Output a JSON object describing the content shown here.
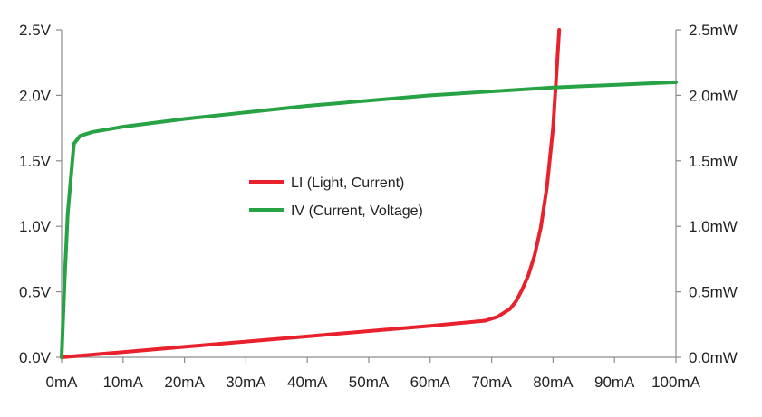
{
  "chart_data": {
    "type": "line",
    "xlabel": "",
    "ylabel": "",
    "y2label": "",
    "grid": false,
    "legend_position": "center",
    "x_ticks": [
      "0mA",
      "10mA",
      "20mA",
      "30mA",
      "40mA",
      "50mA",
      "60mA",
      "70mA",
      "80mA",
      "90mA",
      "100mA"
    ],
    "x_tick_values": [
      0,
      10,
      20,
      30,
      40,
      50,
      60,
      70,
      80,
      90,
      100
    ],
    "xlim": [
      0,
      100
    ],
    "y_left_ticks": [
      "0.0V",
      "0.5V",
      "1.0V",
      "1.5V",
      "2.0V",
      "2.5V"
    ],
    "y_left_tick_values": [
      0,
      0.5,
      1.0,
      1.5,
      2.0,
      2.5
    ],
    "ylim_left": [
      0,
      2.5
    ],
    "y_right_ticks": [
      "0.0mW",
      "0.5mW",
      "1.0mW",
      "1.5mW",
      "2.0mW",
      "2.5mW"
    ],
    "y_right_tick_values": [
      0,
      0.5,
      1.0,
      1.5,
      2.0,
      2.5
    ],
    "ylim_right": [
      0,
      2.5
    ],
    "series": [
      {
        "name": "LI (Light, Current)",
        "axis": "right",
        "color": "#e8212d",
        "x": [
          0,
          10,
          20,
          30,
          40,
          50,
          60,
          69,
          71,
          73,
          74,
          75,
          76,
          77,
          78,
          79,
          80,
          81
        ],
        "y": [
          0,
          0.04,
          0.08,
          0.12,
          0.16,
          0.2,
          0.24,
          0.28,
          0.31,
          0.37,
          0.43,
          0.52,
          0.63,
          0.78,
          0.99,
          1.3,
          1.75,
          2.5
        ]
      },
      {
        "name": "IV (Current, Voltage)",
        "axis": "left",
        "color": "#27a244",
        "x": [
          0,
          0.5,
          1,
          2,
          3,
          5,
          10,
          20,
          30,
          40,
          50,
          60,
          70,
          80,
          90,
          100
        ],
        "y": [
          0,
          0.6,
          1.1,
          1.63,
          1.69,
          1.72,
          1.76,
          1.82,
          1.87,
          1.92,
          1.96,
          2.0,
          2.03,
          2.06,
          2.08,
          2.1
        ]
      }
    ]
  }
}
